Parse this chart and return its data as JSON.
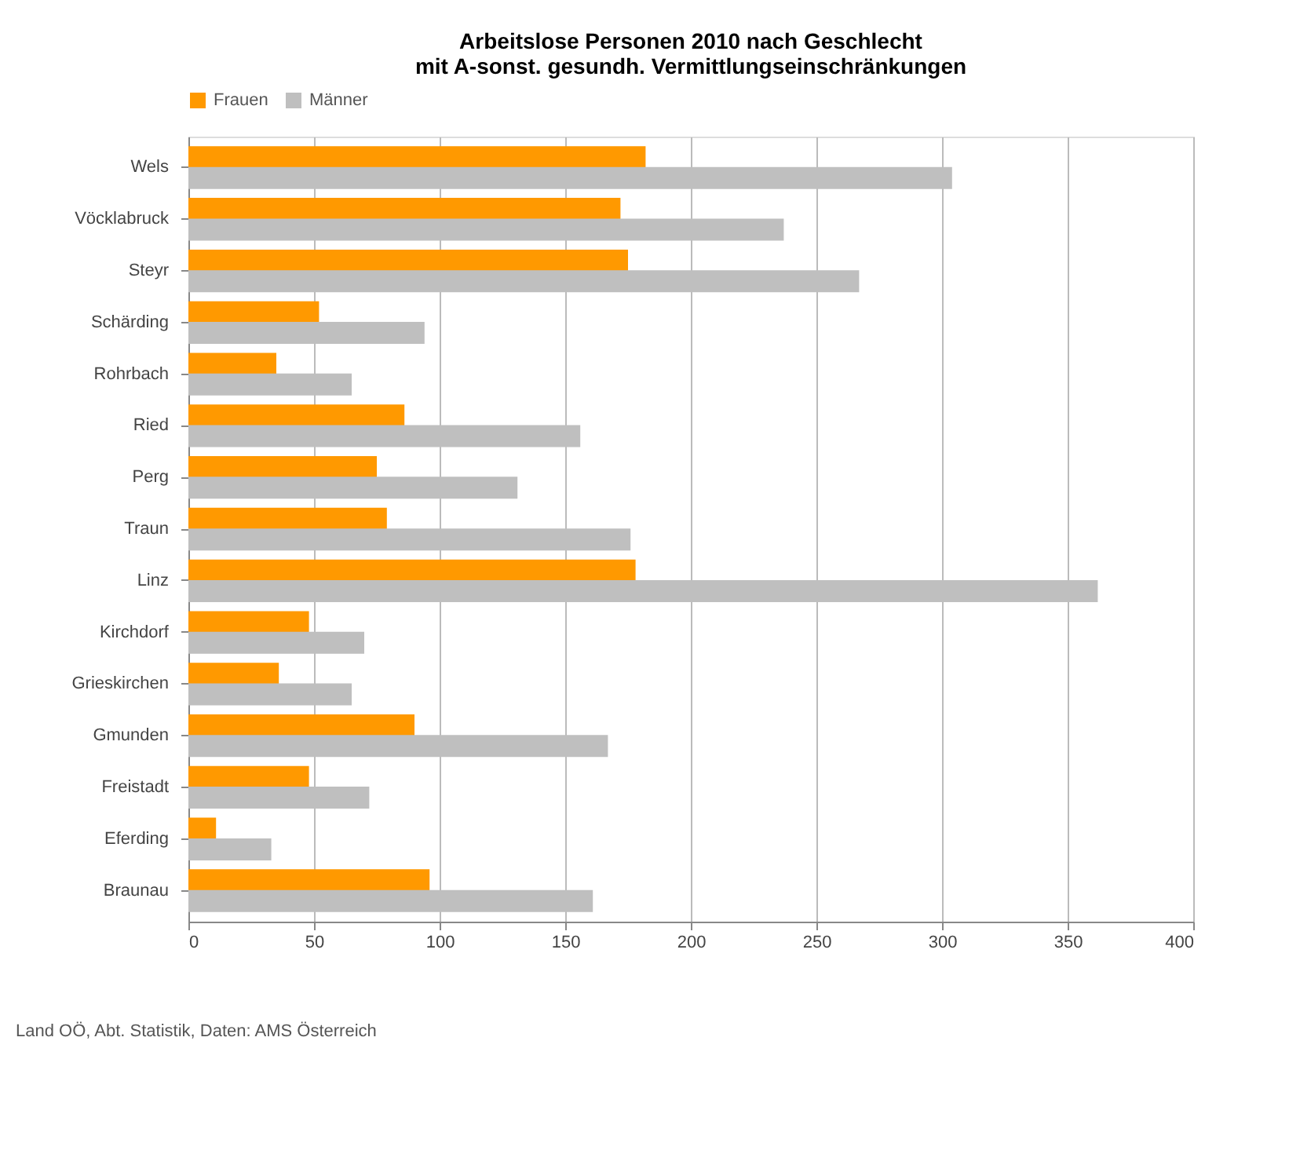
{
  "chart_data": {
    "type": "bar",
    "orientation": "horizontal",
    "title": [
      "Arbeitslose Personen 2010 nach Geschlecht",
      "mit A-sonst. gesundh. Vermittlungseinschränkungen"
    ],
    "categories": [
      "Wels",
      "Vöcklabruck",
      "Steyr",
      "Schärding",
      "Rohrbach",
      "Ried",
      "Perg",
      "Traun",
      "Linz",
      "Kirchdorf",
      "Grieskirchen",
      "Gmunden",
      "Freistadt",
      "Eferding",
      "Braunau"
    ],
    "series": [
      {
        "name": "Frauen",
        "color": "#ff9900",
        "values": [
          182,
          172,
          175,
          52,
          35,
          86,
          75,
          79,
          178,
          48,
          36,
          90,
          48,
          11,
          96
        ]
      },
      {
        "name": "Männer",
        "color": "#bfbfbf",
        "values": [
          304,
          237,
          267,
          94,
          65,
          156,
          131,
          176,
          362,
          70,
          65,
          167,
          72,
          33,
          161
        ]
      }
    ],
    "xlim": [
      0,
      400
    ],
    "xticks": [
      0,
      50,
      100,
      150,
      200,
      250,
      300,
      350,
      400
    ],
    "grid": "x",
    "legend": "top",
    "annotations": [
      "Land OÖ, Abt. Statistik, Daten: AMS Österreich"
    ]
  }
}
